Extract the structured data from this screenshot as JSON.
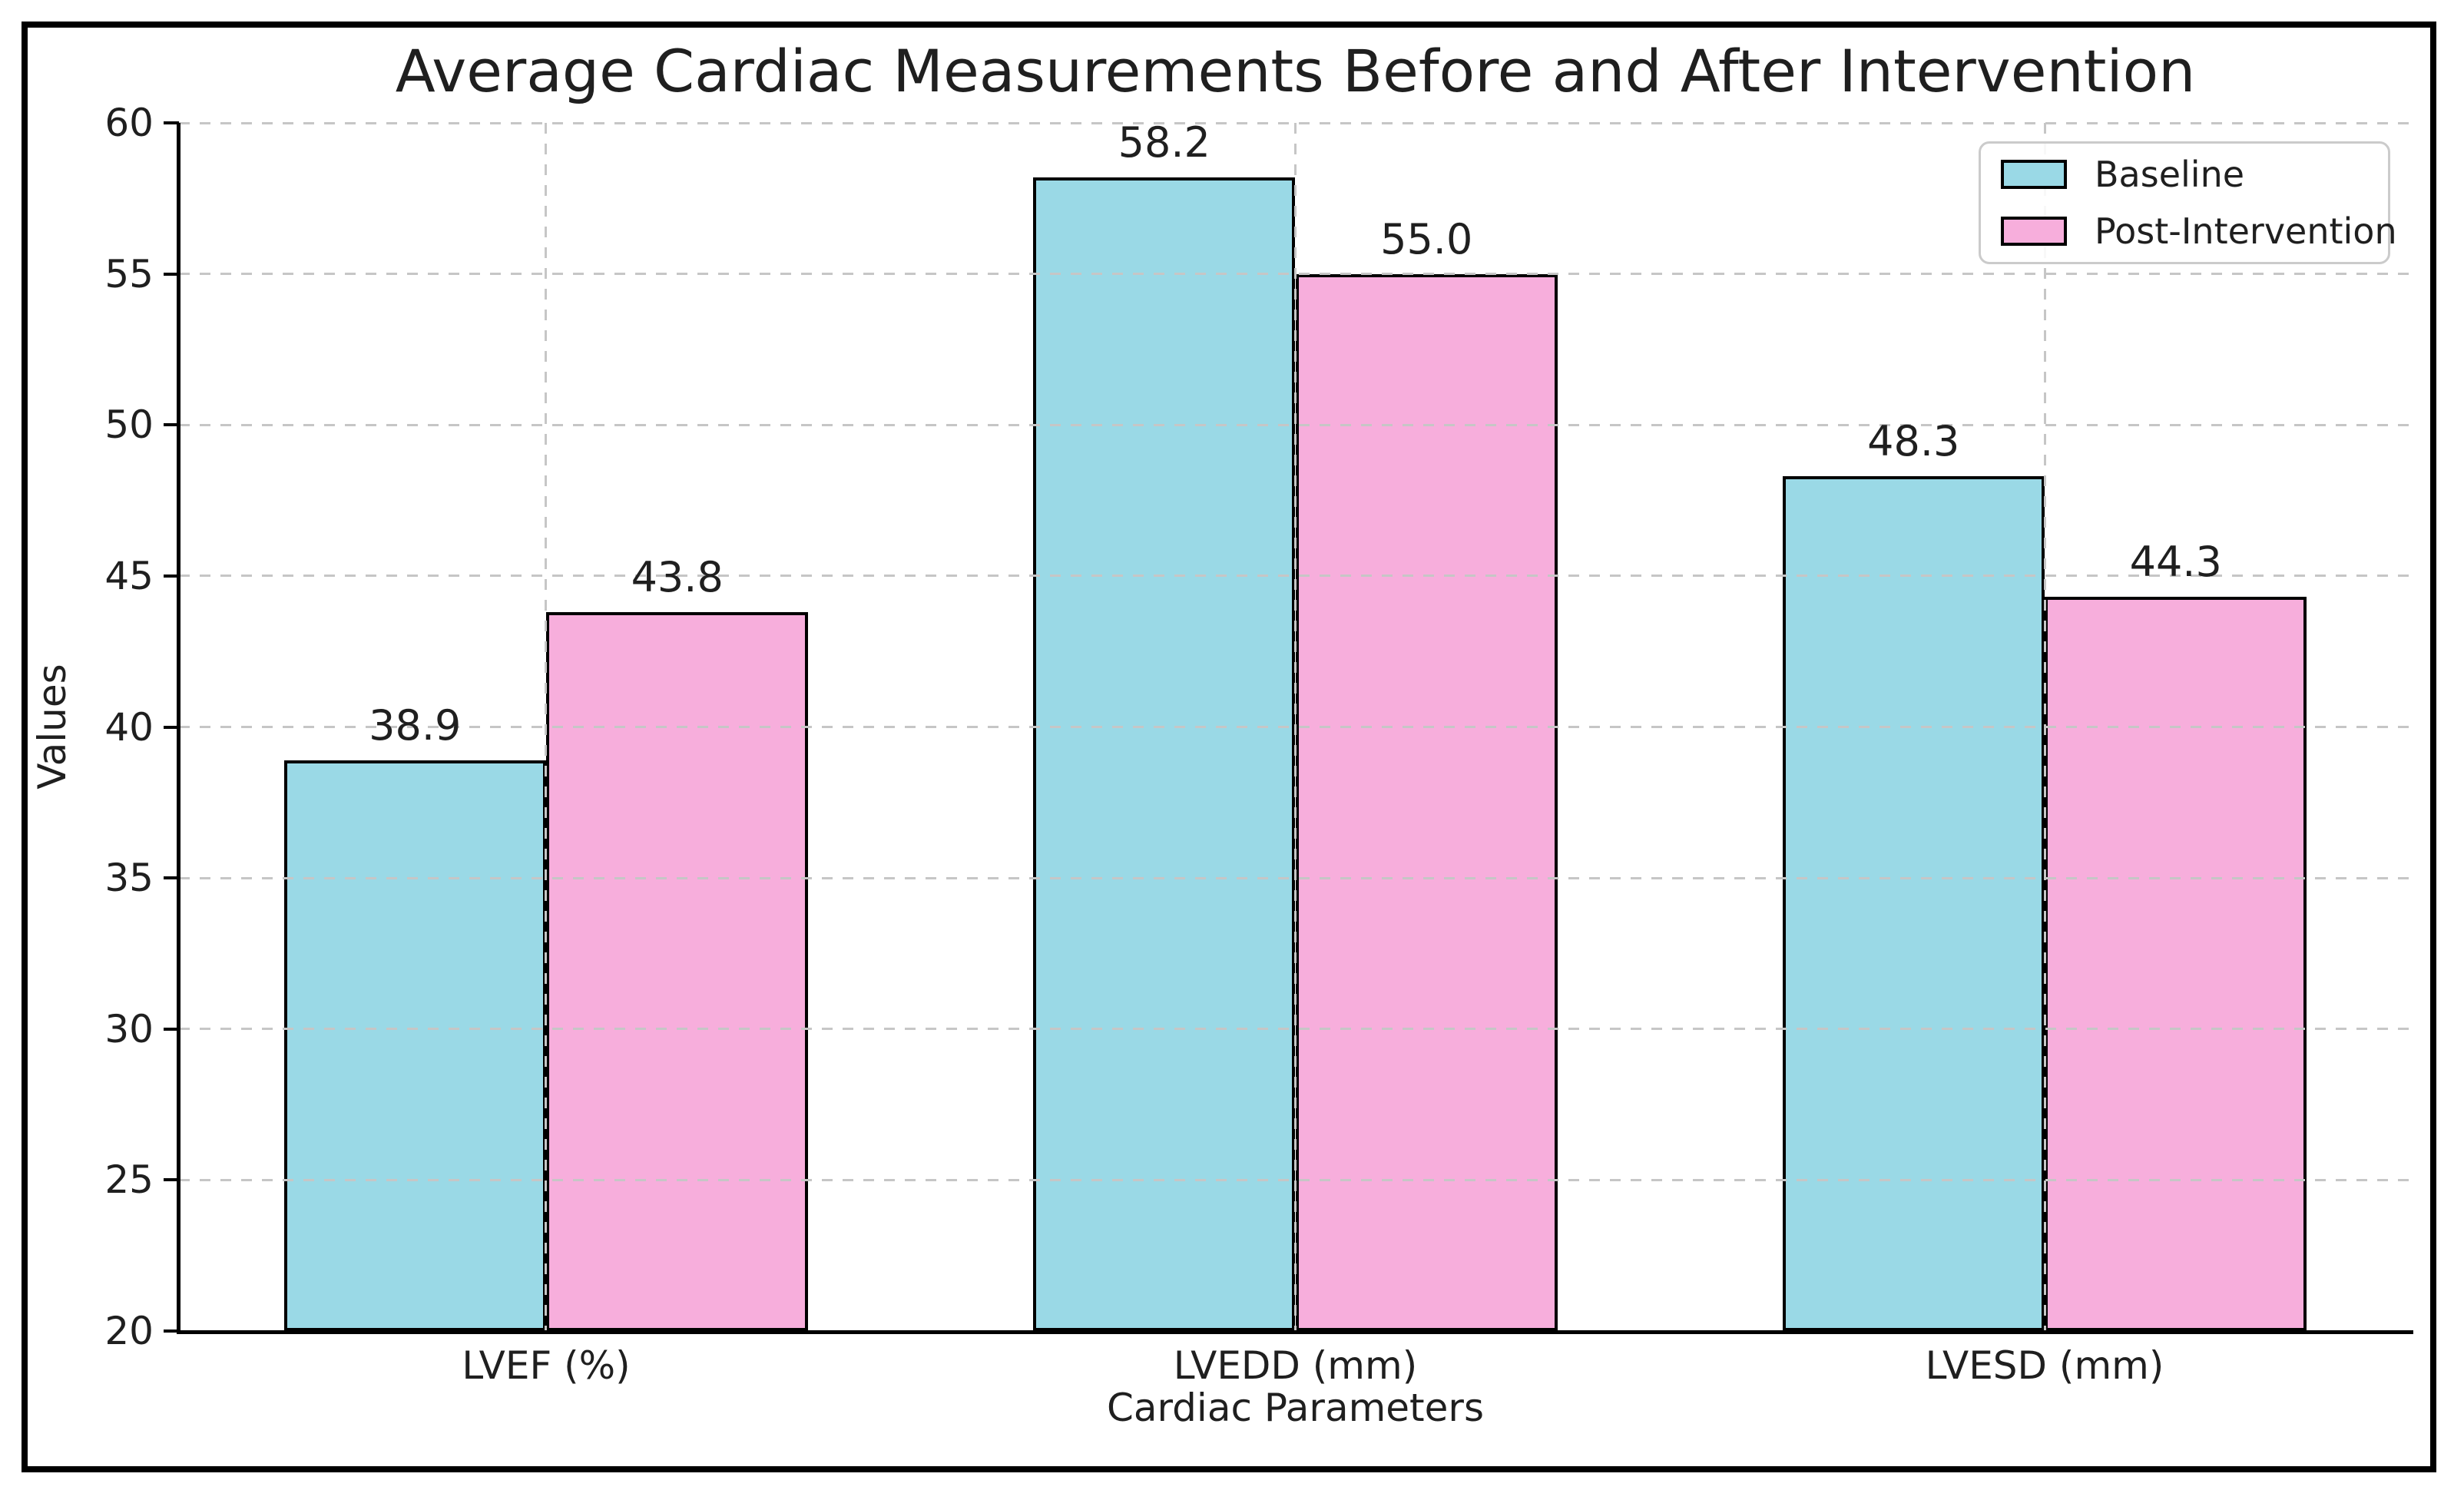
{
  "chart_data": {
    "type": "bar",
    "title": "Average Cardiac Measurements Before and After Intervention",
    "xlabel": "Cardiac Parameters",
    "ylabel": "Values",
    "categories": [
      "LVEF (%)",
      "LVEDD (mm)",
      "LVESD (mm)"
    ],
    "series": [
      {
        "name": "Baseline",
        "color": "#9ad9e6",
        "values": [
          38.9,
          58.2,
          48.3
        ]
      },
      {
        "name": "Post-Intervention",
        "color": "#f7aedc",
        "values": [
          43.8,
          55.0,
          44.3
        ]
      }
    ],
    "value_labels": [
      [
        "38.9",
        "58.2",
        "48.3"
      ],
      [
        "43.8",
        "55.0",
        "44.3"
      ]
    ],
    "ylim": [
      20,
      60
    ],
    "yticks": [
      20,
      25,
      30,
      35,
      40,
      45,
      50,
      55,
      60
    ],
    "grid": true,
    "grid_linestyle": "dashed",
    "legend_position": "upper right",
    "colors": {
      "bar_edge": "#000000",
      "grid": "#c6c6c6",
      "spine": "#000000",
      "text": "#1f1f1f",
      "legend_border": "#cbcbcb"
    }
  }
}
